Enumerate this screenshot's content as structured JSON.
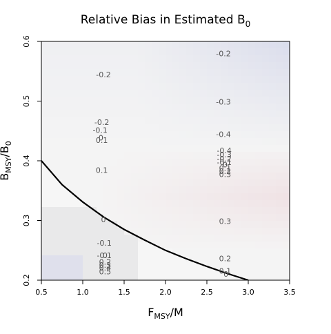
{
  "chart_data": {
    "type": "heatmap",
    "title": "Relative Bias in Estimated B",
    "title_subscript": "0",
    "xlabel": "F",
    "xlabel_subscript": "MSY",
    "xlabel_suffix": "/M",
    "ylabel": "B",
    "ylabel_subscript": "MSY",
    "ylabel_suffix": "/B",
    "ylabel_suffix_subscript": "0",
    "xlim": [
      0.5,
      3.5
    ],
    "ylim": [
      0.2,
      0.6
    ],
    "x_ticks": [
      0.5,
      1.0,
      1.5,
      2.0,
      2.5,
      3.0,
      3.5
    ],
    "x_tick_labels": [
      "0.5",
      "1.0",
      "1.5",
      "2.0",
      "2.5",
      "3.0",
      "3.5"
    ],
    "y_ticks": [
      0.2,
      0.3,
      0.4,
      0.5,
      0.6
    ],
    "y_tick_labels": [
      "0.2",
      "0.3",
      "0.4",
      "0.5",
      "0.6"
    ],
    "grid": false,
    "colors": {
      "negative": "#c9cde6",
      "neutral": "#f4f4f4",
      "positive": "#ecd3d8",
      "contour_text": "#555555",
      "boundary_curve": "#000000"
    },
    "boundary_curve": {
      "x": [
        0.5,
        0.75,
        1.0,
        1.25,
        1.5,
        1.75,
        2.0,
        2.25,
        2.5,
        2.75,
        3.0
      ],
      "y": [
        0.4,
        0.36,
        0.331,
        0.306,
        0.285,
        0.267,
        0.25,
        0.236,
        0.223,
        0.211,
        0.2
      ]
    },
    "contour_labels": [
      {
        "text": "-0.2",
        "x": 1.25,
        "y": 0.54
      },
      {
        "text": "-0.2",
        "x": 2.7,
        "y": 0.575
      },
      {
        "text": "-0.3",
        "x": 2.7,
        "y": 0.494
      },
      {
        "text": "-0.2",
        "x": 1.23,
        "y": 0.46
      },
      {
        "text": "-0.1",
        "x": 1.21,
        "y": 0.447
      },
      {
        "text": "0",
        "x": 1.22,
        "y": 0.434
      },
      {
        "text": "0.1",
        "x": 1.23,
        "y": 0.43
      },
      {
        "text": "-0.4",
        "x": 2.7,
        "y": 0.44
      },
      {
        "text": "-0.4",
        "x": 2.71,
        "y": 0.413
      },
      {
        "text": "-0.3",
        "x": 2.71,
        "y": 0.406
      },
      {
        "text": "-0.2",
        "x": 2.71,
        "y": 0.399
      },
      {
        "text": "-0.1",
        "x": 2.71,
        "y": 0.393
      },
      {
        "text": "0",
        "x": 2.72,
        "y": 0.389
      },
      {
        "text": "0.1",
        "x": 2.72,
        "y": 0.383
      },
      {
        "text": "0.2",
        "x": 2.72,
        "y": 0.378
      },
      {
        "text": "0.3",
        "x": 2.72,
        "y": 0.373
      },
      {
        "text": "0.1",
        "x": 1.23,
        "y": 0.38
      },
      {
        "text": "0.3",
        "x": 2.72,
        "y": 0.294
      },
      {
        "text": "0.2",
        "x": 2.72,
        "y": 0.232
      },
      {
        "text": "0",
        "x": 1.25,
        "y": 0.297
      },
      {
        "text": "-0.1",
        "x": 1.26,
        "y": 0.258
      },
      {
        "text": "-0.1",
        "x": 1.26,
        "y": 0.237
      },
      {
        "text": "0",
        "x": 1.27,
        "y": 0.237
      },
      {
        "text": "0.2",
        "x": 1.27,
        "y": 0.226
      },
      {
        "text": "0.3",
        "x": 1.27,
        "y": 0.221
      },
      {
        "text": "0.4",
        "x": 1.27,
        "y": 0.216
      },
      {
        "text": "0.5",
        "x": 1.27,
        "y": 0.21
      },
      {
        "text": "0.1",
        "x": 2.72,
        "y": 0.211
      },
      {
        "text": "0",
        "x": 2.73,
        "y": 0.206
      }
    ]
  }
}
